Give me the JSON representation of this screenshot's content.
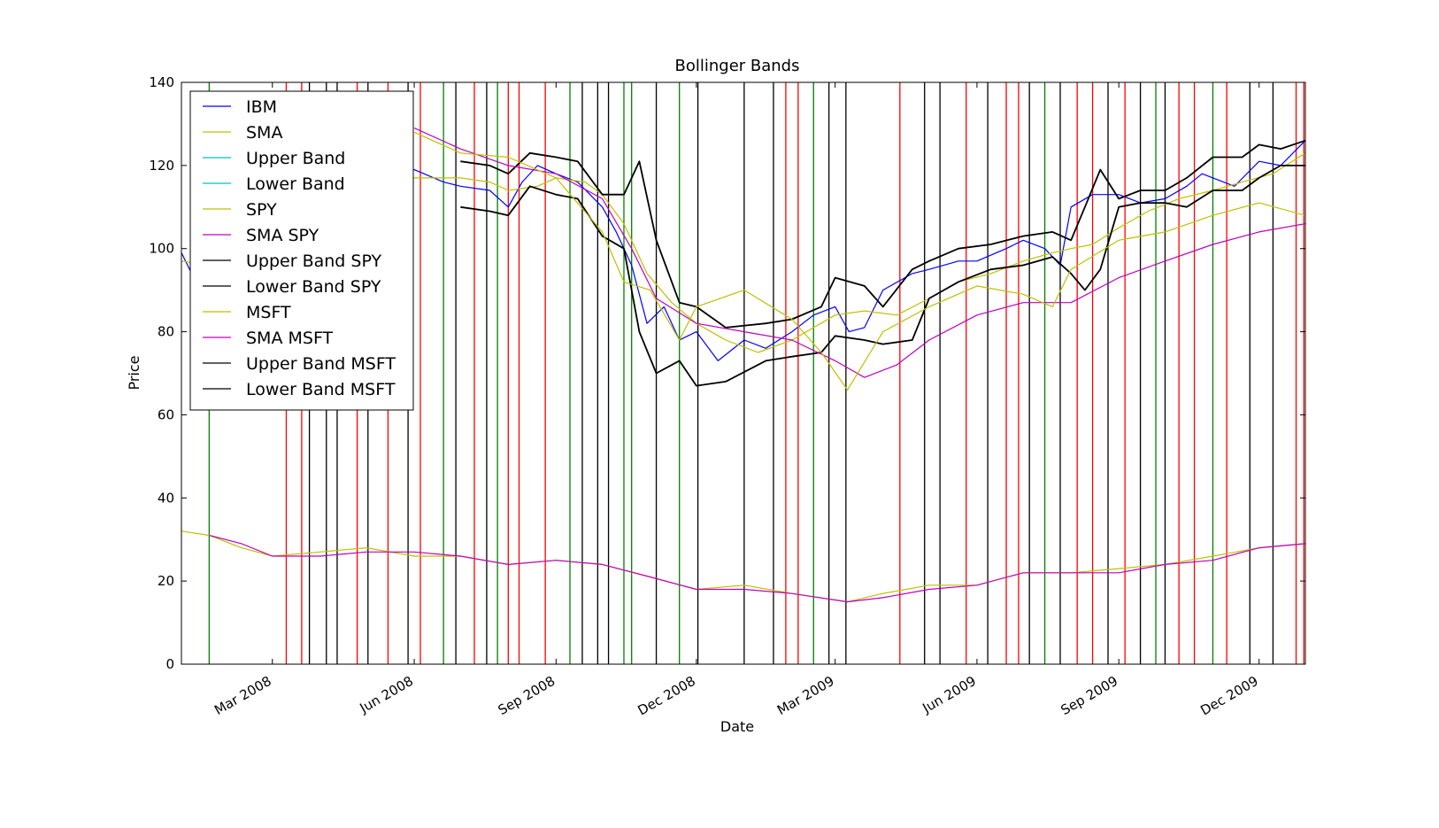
{
  "chart_data": {
    "type": "line",
    "title": "Bollinger Bands",
    "xlabel": "Date",
    "ylabel": "Price",
    "ylim": [
      0,
      140
    ],
    "xlim": [
      "2008-01-02",
      "2009-12-31"
    ],
    "yticks": [
      0,
      20,
      40,
      60,
      80,
      100,
      120,
      140
    ],
    "xticks": [
      {
        "date": "2008-03-01",
        "label": "Mar 2008"
      },
      {
        "date": "2008-06-01",
        "label": "Jun 2008"
      },
      {
        "date": "2008-09-01",
        "label": "Sep 2008"
      },
      {
        "date": "2008-12-01",
        "label": "Dec 2008"
      },
      {
        "date": "2009-03-01",
        "label": "Mar 2009"
      },
      {
        "date": "2009-06-01",
        "label": "Jun 2009"
      },
      {
        "date": "2009-09-01",
        "label": "Sep 2009"
      },
      {
        "date": "2009-12-01",
        "label": "Dec 2009"
      }
    ],
    "grid": false,
    "legend_position": "upper-left",
    "colors": {
      "IBM": "#0000ff",
      "SMA": "#bfbf00",
      "Upper Band": "#00bfbf",
      "Lower Band": "#00bfbf",
      "SPY": "#bfbf00",
      "SMA SPY": "#bf00bf",
      "Upper Band SPY": "#000000",
      "Lower Band SPY": "#000000",
      "MSFT": "#bfbf00",
      "SMA MSFT": "#bf00bf",
      "Upper Band MSFT": "#000000",
      "Lower Band MSFT": "#000000",
      "buy_signal": "#008000",
      "sell_signal": "#ff0000",
      "other_signal": "#000000"
    },
    "legend": [
      "IBM",
      "SMA",
      "Upper Band",
      "Lower Band",
      "SPY",
      "SMA SPY",
      "Upper Band SPY",
      "Lower Band SPY",
      "MSFT",
      "SMA MSFT",
      "Upper Band MSFT",
      "Lower Band MSFT"
    ],
    "series": [
      {
        "name": "IBM",
        "x": [
          "2008-01-02",
          "2008-01-10",
          "2008-01-20",
          "2008-02-10",
          "2008-03-01",
          "2008-04-01",
          "2008-05-01",
          "2008-06-01",
          "2008-06-20",
          "2008-07-01",
          "2008-07-20",
          "2008-08-01",
          "2008-08-10",
          "2008-08-20",
          "2008-09-01",
          "2008-09-15",
          "2008-10-01",
          "2008-10-10",
          "2008-10-20",
          "2008-10-30",
          "2008-11-10",
          "2008-11-20",
          "2008-12-01",
          "2008-12-15",
          "2009-01-01",
          "2009-01-15",
          "2009-02-01",
          "2009-02-15",
          "2009-03-01",
          "2009-03-10",
          "2009-03-20",
          "2009-04-01",
          "2009-04-20",
          "2009-05-01",
          "2009-05-20",
          "2009-06-01",
          "2009-06-20",
          "2009-07-01",
          "2009-07-15",
          "2009-07-25",
          "2009-08-01",
          "2009-08-15",
          "2009-09-01",
          "2009-09-15",
          "2009-10-01",
          "2009-10-15",
          "2009-10-25",
          "2009-11-01",
          "2009-11-15",
          "2009-12-01",
          "2009-12-15",
          "2009-12-31"
        ],
        "y": [
          99,
          93,
          97,
          100,
          104,
          112,
          119,
          119,
          116,
          115,
          114,
          110,
          116,
          120,
          118,
          116,
          110,
          104,
          96,
          82,
          86,
          78,
          80,
          73,
          78,
          76,
          80,
          84,
          86,
          80,
          81,
          90,
          94,
          95,
          97,
          97,
          100,
          102,
          100,
          96,
          110,
          113,
          113,
          111,
          112,
          115,
          118,
          117,
          115,
          121,
          120,
          126
        ]
      },
      {
        "name": "SMA",
        "x": [
          "2008-01-02",
          "2008-01-20",
          "2008-02-10",
          "2008-03-01",
          "2008-04-01",
          "2008-05-01",
          "2008-06-01",
          "2008-06-20",
          "2008-07-01",
          "2008-07-20",
          "2008-08-01",
          "2008-08-20",
          "2008-09-01",
          "2008-09-20",
          "2008-10-01",
          "2008-10-15",
          "2008-10-30",
          "2008-11-15",
          "2008-12-01",
          "2008-12-20",
          "2009-01-10",
          "2009-02-01",
          "2009-02-15",
          "2009-03-01",
          "2009-03-20",
          "2009-04-10",
          "2009-05-01",
          "2009-05-20",
          "2009-06-10",
          "2009-07-01",
          "2009-07-20",
          "2009-08-01",
          "2009-08-15",
          "2009-09-01",
          "2009-09-20",
          "2009-10-10",
          "2009-11-01",
          "2009-11-20",
          "2009-12-10",
          "2009-12-31"
        ],
        "y": [
          97,
          96,
          98,
          102,
          109,
          115,
          117,
          117,
          117,
          116,
          114,
          115,
          117,
          116,
          113,
          106,
          94,
          87,
          82,
          78,
          75,
          78,
          81,
          84,
          85,
          84,
          88,
          92,
          94,
          97,
          99,
          100,
          101,
          105,
          109,
          112,
          114,
          116,
          118,
          123
        ]
      },
      {
        "name": "Upper Band SPY",
        "x": [
          "2008-07-01",
          "2008-07-20",
          "2008-08-01",
          "2008-08-15",
          "2008-09-01",
          "2008-09-15",
          "2008-10-01",
          "2008-10-15",
          "2008-10-25",
          "2008-11-05",
          "2008-11-20",
          "2008-12-01",
          "2008-12-20",
          "2009-01-15",
          "2009-02-01",
          "2009-02-20",
          "2009-03-01",
          "2009-03-20",
          "2009-04-01",
          "2009-04-20",
          "2009-05-01",
          "2009-05-20",
          "2009-06-10",
          "2009-07-01",
          "2009-07-20",
          "2009-08-01",
          "2009-08-10",
          "2009-08-20",
          "2009-09-01",
          "2009-09-15",
          "2009-10-01",
          "2009-10-15",
          "2009-11-01",
          "2009-11-20",
          "2009-12-01",
          "2009-12-15",
          "2009-12-31"
        ],
        "y": [
          121,
          120,
          118,
          123,
          122,
          121,
          113,
          113,
          121,
          102,
          87,
          86,
          81,
          82,
          83,
          86,
          93,
          91,
          86,
          95,
          97,
          100,
          101,
          103,
          104,
          102,
          110,
          119,
          112,
          114,
          114,
          117,
          122,
          122,
          125,
          124,
          126
        ]
      },
      {
        "name": "Lower Band SPY",
        "x": [
          "2008-07-01",
          "2008-07-20",
          "2008-08-01",
          "2008-08-15",
          "2008-09-01",
          "2008-09-15",
          "2008-10-01",
          "2008-10-15",
          "2008-10-25",
          "2008-11-05",
          "2008-11-20",
          "2008-12-01",
          "2008-12-20",
          "2009-01-15",
          "2009-02-01",
          "2009-02-20",
          "2009-03-01",
          "2009-03-20",
          "2009-04-01",
          "2009-04-20",
          "2009-05-01",
          "2009-05-20",
          "2009-06-10",
          "2009-07-01",
          "2009-07-20",
          "2009-08-01",
          "2009-08-10",
          "2009-08-20",
          "2009-09-01",
          "2009-09-15",
          "2009-10-01",
          "2009-10-15",
          "2009-11-01",
          "2009-11-20",
          "2009-12-01",
          "2009-12-15",
          "2009-12-31"
        ],
        "y": [
          110,
          109,
          108,
          115,
          113,
          112,
          103,
          100,
          80,
          70,
          73,
          67,
          68,
          73,
          74,
          75,
          79,
          78,
          77,
          78,
          88,
          92,
          95,
          96,
          98,
          94,
          90,
          95,
          110,
          111,
          111,
          110,
          114,
          114,
          117,
          120,
          120
        ]
      },
      {
        "name": "SMA SPY",
        "x": [
          "2008-06-01",
          "2008-07-01",
          "2008-08-01",
          "2008-09-01",
          "2008-10-01",
          "2008-10-20",
          "2008-11-05",
          "2008-12-01",
          "2009-01-01",
          "2009-02-01",
          "2009-03-01",
          "2009-03-20",
          "2009-04-10",
          "2009-05-01",
          "2009-06-01",
          "2009-07-01",
          "2009-08-01",
          "2009-09-01",
          "2009-10-01",
          "2009-11-01",
          "2009-12-01",
          "2009-12-31"
        ],
        "y": [
          129,
          124,
          120,
          118,
          112,
          100,
          88,
          82,
          80,
          78,
          73,
          69,
          72,
          78,
          84,
          87,
          87,
          93,
          97,
          101,
          104,
          106
        ]
      },
      {
        "name": "SPY",
        "x": [
          "2008-06-01",
          "2008-07-01",
          "2008-08-01",
          "2008-09-01",
          "2008-10-01",
          "2008-10-15",
          "2008-11-01",
          "2008-11-20",
          "2008-12-01",
          "2009-01-01",
          "2009-02-01",
          "2009-02-20",
          "2009-03-09",
          "2009-04-01",
          "2009-05-01",
          "2009-06-01",
          "2009-07-01",
          "2009-07-20",
          "2009-08-01",
          "2009-09-01",
          "2009-10-01",
          "2009-11-01",
          "2009-12-01",
          "2009-12-31"
        ],
        "y": [
          128,
          123,
          122,
          117,
          104,
          92,
          90,
          78,
          86,
          90,
          83,
          75,
          66,
          80,
          86,
          91,
          89,
          86,
          95,
          102,
          104,
          108,
          111,
          108
        ]
      },
      {
        "name": "MSFT",
        "x": [
          "2008-01-02",
          "2008-01-20",
          "2008-02-10",
          "2008-03-01",
          "2008-04-01",
          "2008-05-01",
          "2008-06-01",
          "2008-07-01",
          "2008-08-01",
          "2008-09-01",
          "2008-10-01",
          "2008-11-01",
          "2008-12-01",
          "2009-01-01",
          "2009-02-01",
          "2009-03-09",
          "2009-04-01",
          "2009-05-01",
          "2009-06-01",
          "2009-07-01",
          "2009-08-01",
          "2009-09-01",
          "2009-10-01",
          "2009-11-01",
          "2009-12-01",
          "2009-12-31"
        ],
        "y": [
          32,
          31,
          28,
          26,
          27,
          28,
          26,
          26,
          24,
          25,
          24,
          21,
          18,
          19,
          17,
          15,
          17,
          19,
          19,
          22,
          22,
          23,
          24,
          26,
          28,
          29
        ]
      },
      {
        "name": "SMA MSFT",
        "x": [
          "2008-01-20",
          "2008-02-10",
          "2008-03-01",
          "2008-04-01",
          "2008-05-01",
          "2008-06-01",
          "2008-07-01",
          "2008-08-01",
          "2008-09-01",
          "2008-10-01",
          "2008-11-01",
          "2008-12-01",
          "2009-01-01",
          "2009-02-01",
          "2009-03-09",
          "2009-04-01",
          "2009-05-01",
          "2009-06-01",
          "2009-07-01",
          "2009-08-01",
          "2009-09-01",
          "2009-10-01",
          "2009-11-01",
          "2009-12-01",
          "2009-12-31"
        ],
        "y": [
          31,
          29,
          26,
          26,
          27,
          27,
          26,
          24,
          25,
          24,
          21,
          18,
          18,
          17,
          15,
          16,
          18,
          19,
          22,
          22,
          22,
          24,
          25,
          28,
          29
        ]
      }
    ],
    "signals": [
      {
        "date": "2008-01-20",
        "type": "buy"
      },
      {
        "date": "2008-03-10",
        "type": "sell"
      },
      {
        "date": "2008-03-20",
        "type": "sell"
      },
      {
        "date": "2008-04-25",
        "type": "sell"
      },
      {
        "date": "2008-05-15",
        "type": "sell"
      },
      {
        "date": "2008-06-05",
        "type": "sell"
      },
      {
        "date": "2008-06-20",
        "type": "buy"
      },
      {
        "date": "2008-07-10",
        "type": "sell"
      },
      {
        "date": "2008-07-25",
        "type": "buy"
      },
      {
        "date": "2008-08-01",
        "type": "sell"
      },
      {
        "date": "2008-08-08",
        "type": "sell"
      },
      {
        "date": "2008-08-25",
        "type": "sell"
      },
      {
        "date": "2008-09-10",
        "type": "buy"
      },
      {
        "date": "2008-10-15",
        "type": "buy"
      },
      {
        "date": "2008-10-20",
        "type": "buy"
      },
      {
        "date": "2008-11-20",
        "type": "buy"
      },
      {
        "date": "2009-01-28",
        "type": "sell"
      },
      {
        "date": "2009-02-05",
        "type": "sell"
      },
      {
        "date": "2009-02-15",
        "type": "buy"
      },
      {
        "date": "2009-04-12",
        "type": "sell"
      },
      {
        "date": "2009-05-25",
        "type": "sell"
      },
      {
        "date": "2009-06-20",
        "type": "sell"
      },
      {
        "date": "2009-06-28",
        "type": "sell"
      },
      {
        "date": "2009-07-15",
        "type": "buy"
      },
      {
        "date": "2009-08-05",
        "type": "sell"
      },
      {
        "date": "2009-08-15",
        "type": "sell"
      },
      {
        "date": "2009-09-05",
        "type": "sell"
      },
      {
        "date": "2009-09-25",
        "type": "buy"
      },
      {
        "date": "2009-10-10",
        "type": "sell"
      },
      {
        "date": "2009-10-20",
        "type": "sell"
      },
      {
        "date": "2009-11-01",
        "type": "buy"
      },
      {
        "date": "2009-11-10",
        "type": "sell"
      },
      {
        "date": "2009-12-25",
        "type": "sell"
      },
      {
        "date": "2009-12-30",
        "type": "sell"
      },
      {
        "date": "2008-03-25",
        "type": "other"
      },
      {
        "date": "2008-04-05",
        "type": "other"
      },
      {
        "date": "2008-04-12",
        "type": "other"
      },
      {
        "date": "2008-05-02",
        "type": "other"
      },
      {
        "date": "2008-05-28",
        "type": "other"
      },
      {
        "date": "2008-06-28",
        "type": "other"
      },
      {
        "date": "2008-07-18",
        "type": "other"
      },
      {
        "date": "2008-09-18",
        "type": "other"
      },
      {
        "date": "2008-09-28",
        "type": "other"
      },
      {
        "date": "2008-10-05",
        "type": "other"
      },
      {
        "date": "2008-11-05",
        "type": "other"
      },
      {
        "date": "2008-12-02",
        "type": "other"
      },
      {
        "date": "2009-01-01",
        "type": "other"
      },
      {
        "date": "2009-01-20",
        "type": "other"
      },
      {
        "date": "2009-02-25",
        "type": "other"
      },
      {
        "date": "2009-03-08",
        "type": "other"
      },
      {
        "date": "2009-04-28",
        "type": "other"
      },
      {
        "date": "2009-05-08",
        "type": "other"
      },
      {
        "date": "2009-06-08",
        "type": "other"
      },
      {
        "date": "2009-07-05",
        "type": "other"
      },
      {
        "date": "2009-07-25",
        "type": "other"
      },
      {
        "date": "2009-08-25",
        "type": "other"
      },
      {
        "date": "2009-09-15",
        "type": "other"
      },
      {
        "date": "2009-10-01",
        "type": "other"
      },
      {
        "date": "2009-11-25",
        "type": "other"
      },
      {
        "date": "2009-12-10",
        "type": "other"
      }
    ]
  }
}
